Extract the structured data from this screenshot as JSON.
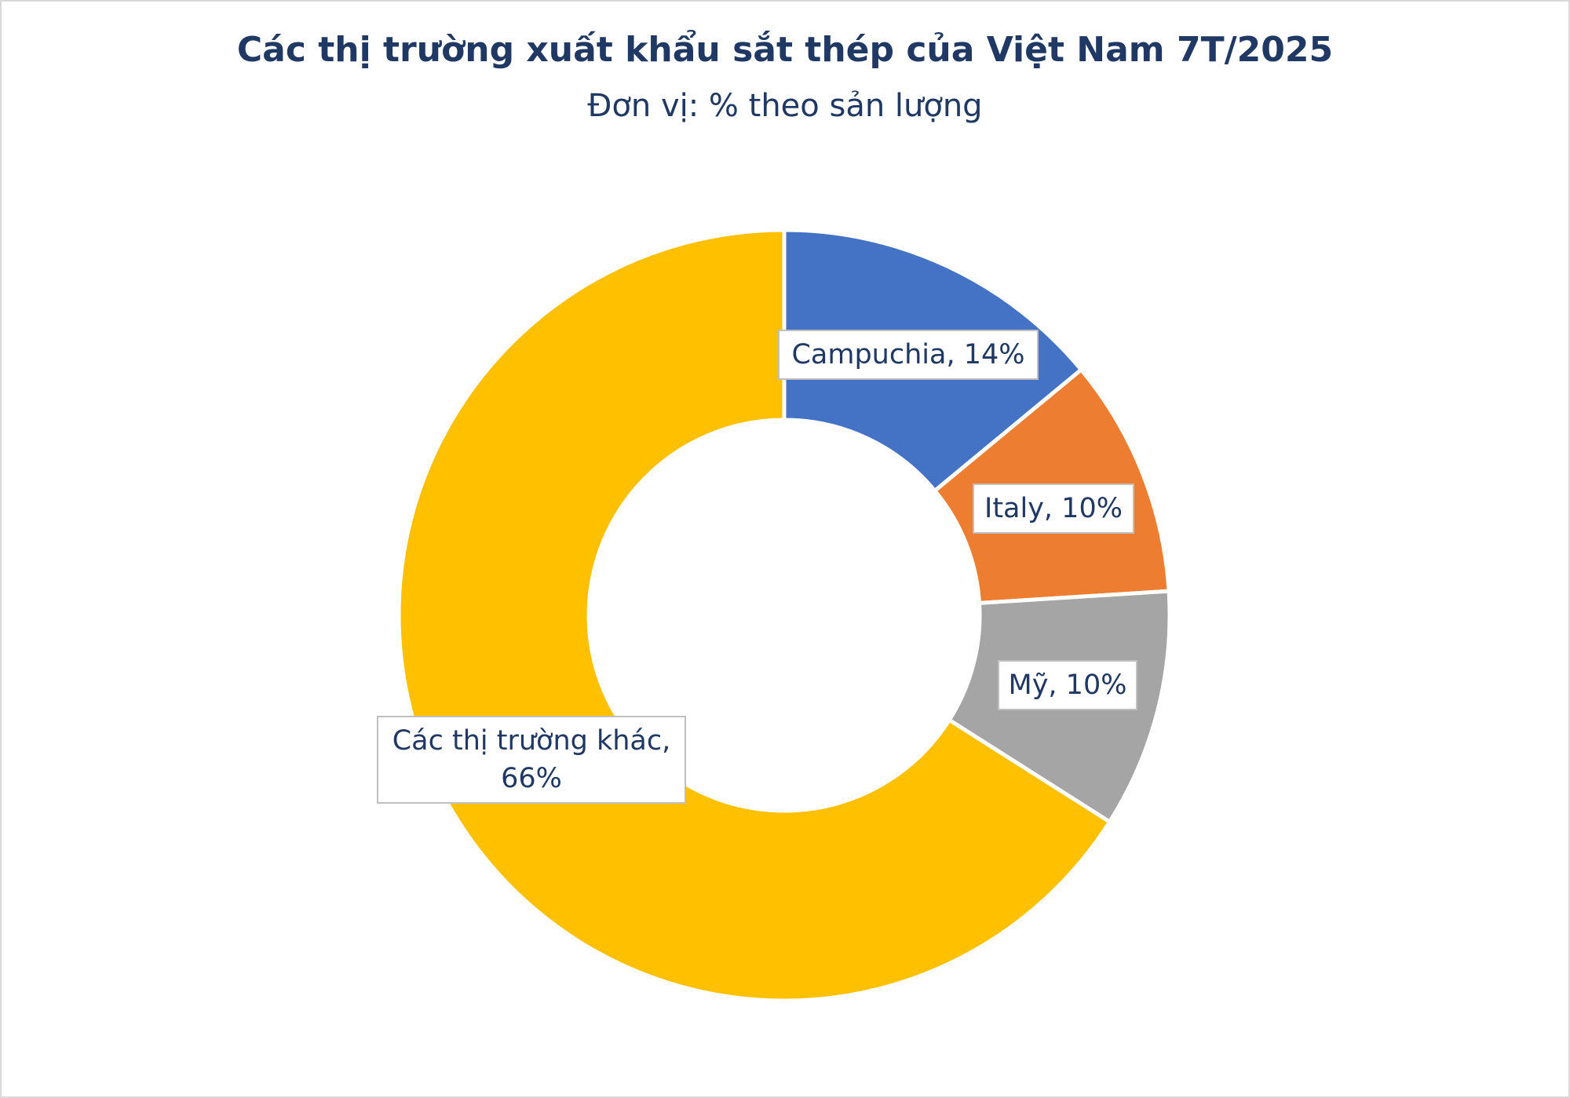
{
  "chart_data": {
    "type": "donut",
    "title": "Các thị trường xuất khẩu sắt thép của Việt Nam 7T/2025",
    "subtitle": "Đơn vị: % theo sản lượng",
    "values": [
      14,
      10,
      10,
      66
    ],
    "value_labels": [
      "Campuchia, 14%",
      "Italy, 10%",
      "Mỹ, 10%",
      "Các thị trường khác, 66%"
    ],
    "colors": [
      "#4472c4",
      "#ed7d31",
      "#a5a5a5",
      "#ffc000"
    ]
  }
}
